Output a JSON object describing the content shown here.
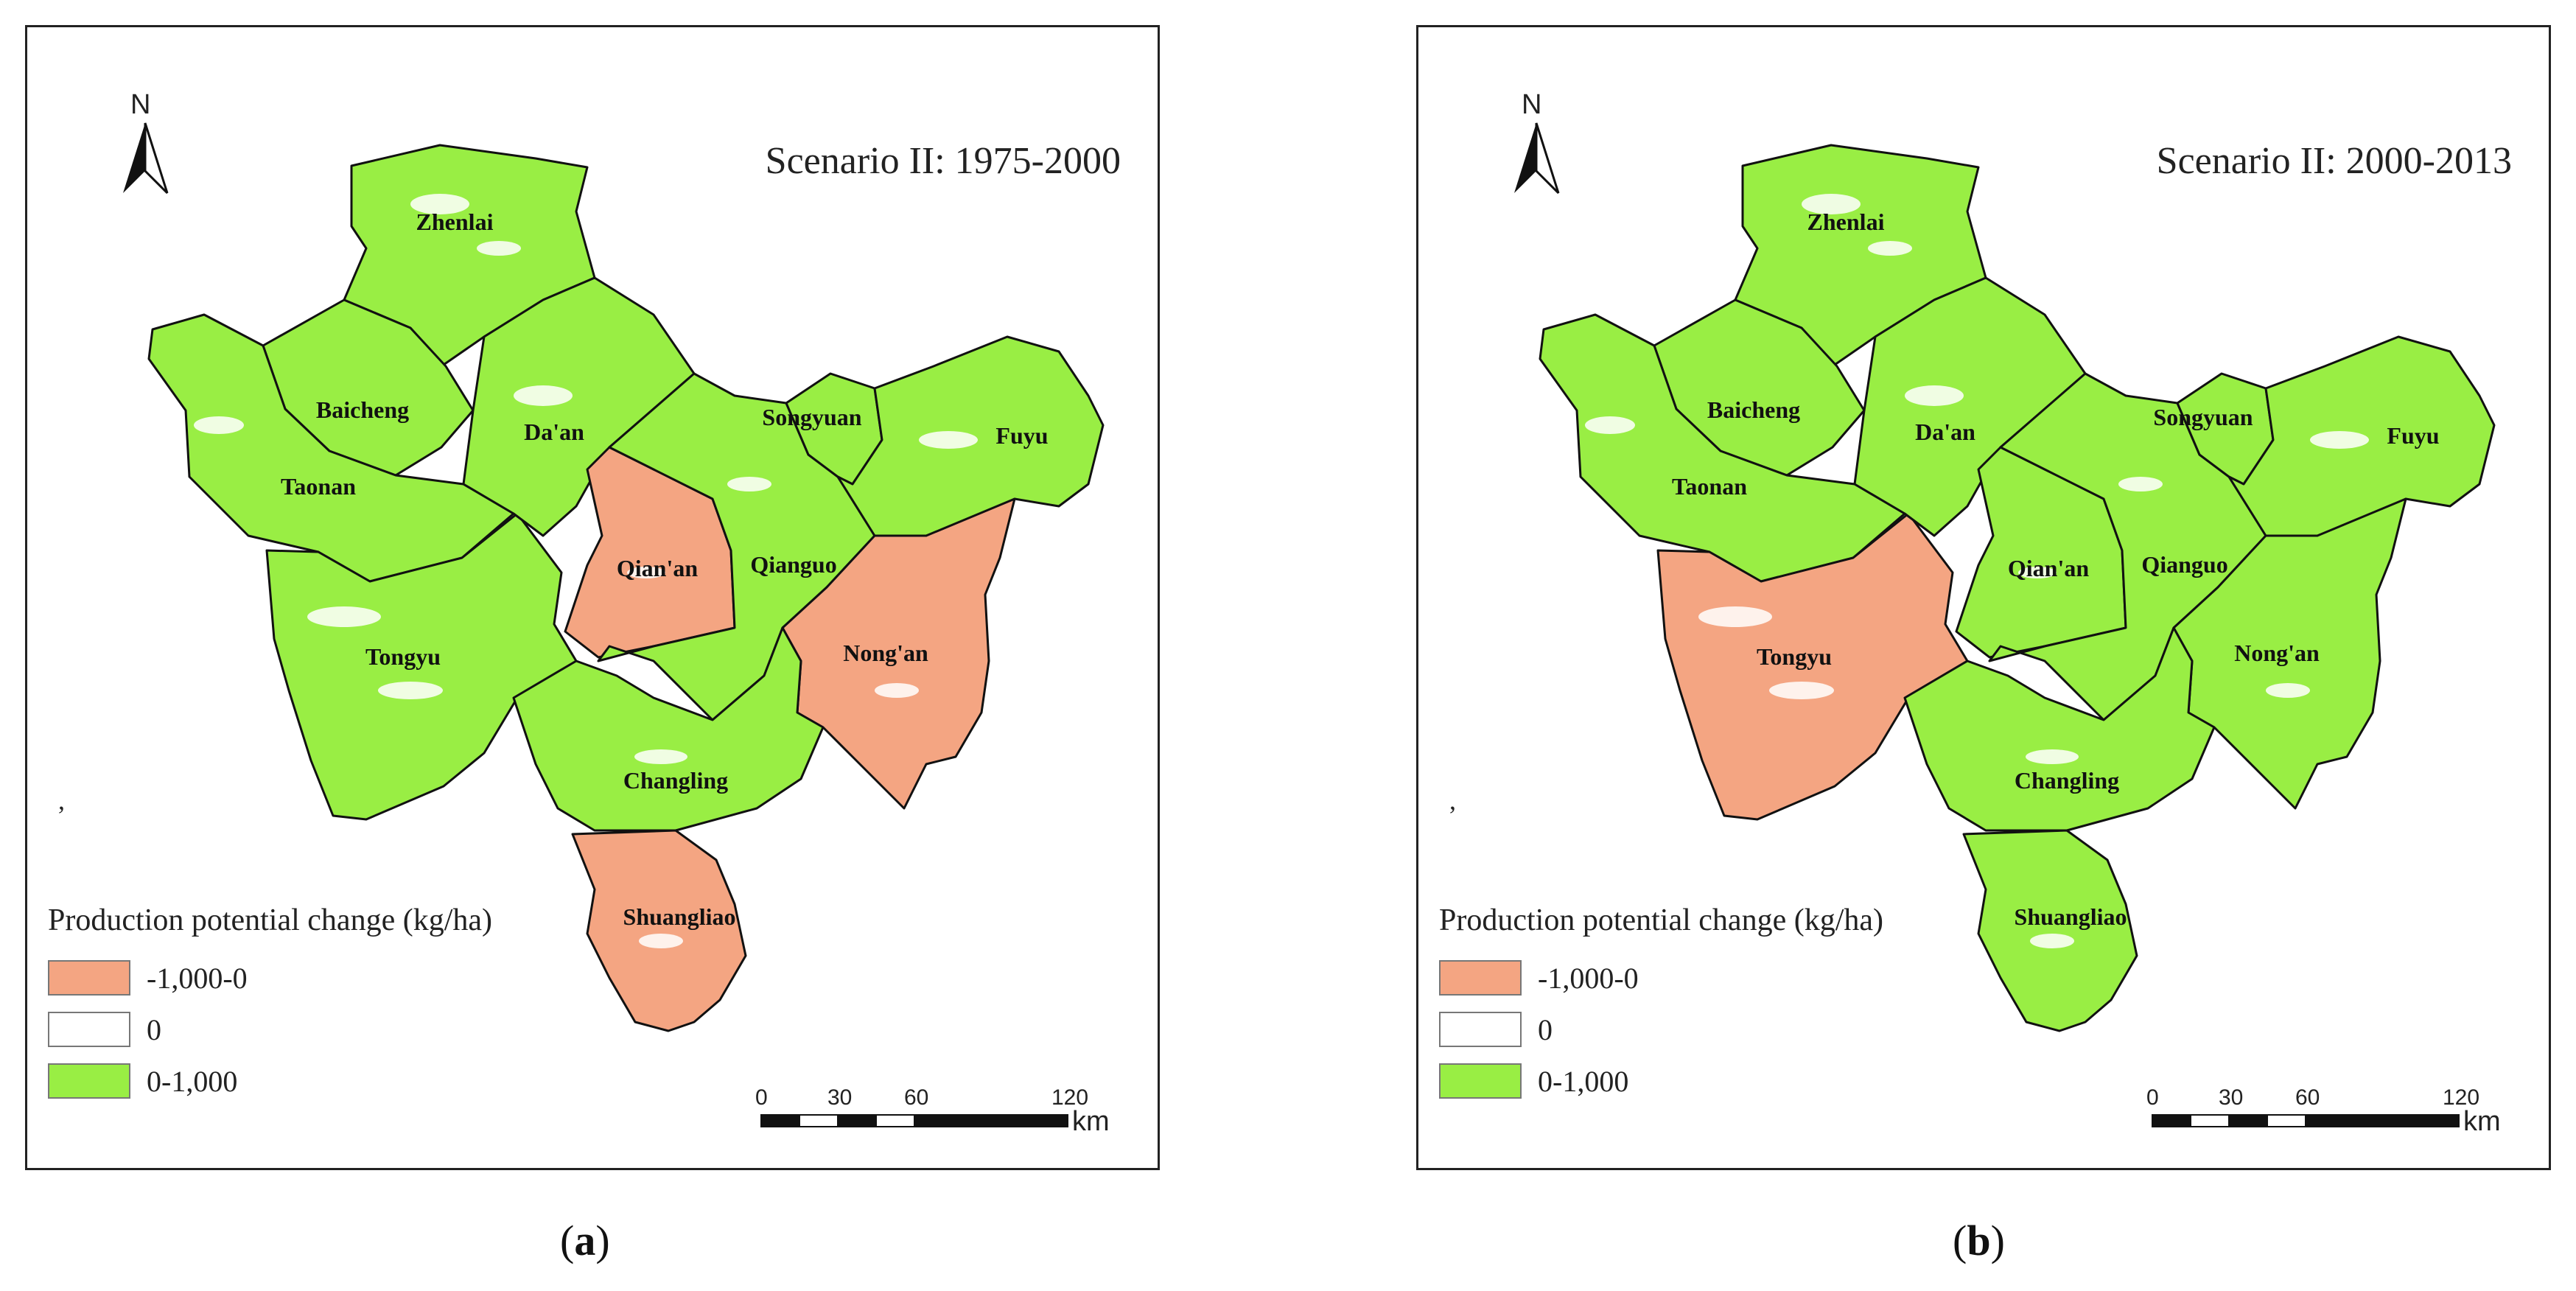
{
  "north_arrow": "N",
  "legend": {
    "title": "Production potential change (kg/ha)",
    "items": [
      {
        "label": "-1,000-0",
        "color": "#f4a582"
      },
      {
        "label": "0",
        "color": "#ffffff"
      },
      {
        "label": "0-1,000",
        "color": "#99ee44"
      }
    ]
  },
  "scale_bar": {
    "ticks": [
      "0",
      "30",
      "60",
      "120"
    ],
    "unit": "km"
  },
  "colors": {
    "decrease": "#f4a582",
    "none": "#ffffff",
    "increase": "#99ee44"
  },
  "panels": [
    {
      "title": "Scenario II: 1975-2000",
      "caption_letter": "a",
      "stray_mark": ",",
      "counties": {
        "zhenlai": {
          "name": "Zhenlai",
          "class": "0-1,000"
        },
        "baicheng": {
          "name": "Baicheng",
          "class": "0-1,000"
        },
        "taonan": {
          "name": "Taonan",
          "class": "0-1,000"
        },
        "tongyu": {
          "name": "Tongyu",
          "class": "0-1,000"
        },
        "daan": {
          "name": "Da'an",
          "class": "0-1,000"
        },
        "qianan": {
          "name": "Qian'an",
          "class": "-1,000-0"
        },
        "qianguo": {
          "name": "Qianguo",
          "class": "0-1,000"
        },
        "songyuan": {
          "name": "Songyuan",
          "class": "0-1,000"
        },
        "fuyu": {
          "name": "Fuyu",
          "class": "0-1,000"
        },
        "nongan": {
          "name": "Nong'an",
          "class": "-1,000-0"
        },
        "changling": {
          "name": "Changling",
          "class": "0-1,000"
        },
        "shuangliao": {
          "name": "Shuangliao",
          "class": "-1,000-0"
        }
      }
    },
    {
      "title": "Scenario II: 2000-2013",
      "caption_letter": "b",
      "stray_mark": ",",
      "counties": {
        "zhenlai": {
          "name": "Zhenlai",
          "class": "0-1,000"
        },
        "baicheng": {
          "name": "Baicheng",
          "class": "0-1,000"
        },
        "taonan": {
          "name": "Taonan",
          "class": "0-1,000"
        },
        "tongyu": {
          "name": "Tongyu",
          "class": "-1,000-0"
        },
        "daan": {
          "name": "Da'an",
          "class": "0-1,000"
        },
        "qianan": {
          "name": "Qian'an",
          "class": "0-1,000"
        },
        "qianguo": {
          "name": "Qianguo",
          "class": "0-1,000"
        },
        "songyuan": {
          "name": "Songyuan",
          "class": "0-1,000"
        },
        "fuyu": {
          "name": "Fuyu",
          "class": "0-1,000"
        },
        "nongan": {
          "name": "Nong'an",
          "class": "0-1,000"
        },
        "changling": {
          "name": "Changling",
          "class": "0-1,000"
        },
        "shuangliao": {
          "name": "Shuangliao",
          "class": "0-1,000"
        }
      }
    }
  ]
}
